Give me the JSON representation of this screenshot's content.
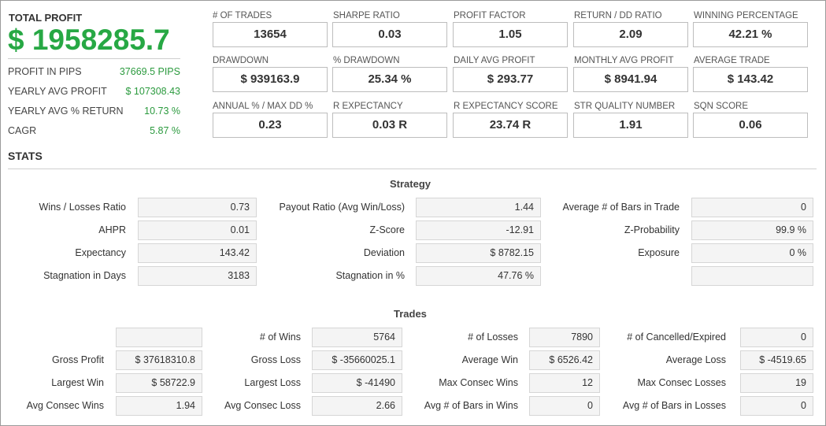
{
  "summary": {
    "total_profit_label": "TOTAL PROFIT",
    "total_profit_value": "$ 1958285.7",
    "rows": [
      {
        "label": "PROFIT IN PIPS",
        "value": "37669.5 PIPS"
      },
      {
        "label": "YEARLY AVG PROFIT",
        "value": "$ 107308.43"
      },
      {
        "label": "YEARLY AVG % RETURN",
        "value": "10.73 %"
      },
      {
        "label": "CAGR",
        "value": "5.87 %"
      }
    ]
  },
  "metrics": [
    {
      "label": "# OF TRADES",
      "value": "13654"
    },
    {
      "label": "SHARPE RATIO",
      "value": "0.03"
    },
    {
      "label": "PROFIT FACTOR",
      "value": "1.05"
    },
    {
      "label": "RETURN / DD RATIO",
      "value": "2.09"
    },
    {
      "label": "WINNING PERCENTAGE",
      "value": "42.21 %"
    },
    {
      "label": "DRAWDOWN",
      "value": "$ 939163.9"
    },
    {
      "label": "% DRAWDOWN",
      "value": "25.34 %"
    },
    {
      "label": "DAILY AVG PROFIT",
      "value": "$ 293.77"
    },
    {
      "label": "MONTHLY AVG PROFIT",
      "value": "$ 8941.94"
    },
    {
      "label": "AVERAGE TRADE",
      "value": "$ 143.42"
    },
    {
      "label": "ANNUAL % / MAX DD %",
      "value": "0.23"
    },
    {
      "label": "R EXPECTANCY",
      "value": "0.03 R"
    },
    {
      "label": "R EXPECTANCY SCORE",
      "value": "23.74 R"
    },
    {
      "label": "STR QUALITY NUMBER",
      "value": "1.91"
    },
    {
      "label": "SQN SCORE",
      "value": "0.06"
    }
  ],
  "stats_title": "STATS",
  "strategy": {
    "title": "Strategy",
    "rows": [
      [
        {
          "label": "Wins / Losses Ratio",
          "value": "0.73"
        },
        {
          "label": "Payout Ratio (Avg Win/Loss)",
          "value": "1.44"
        },
        {
          "label": "Average # of Bars in Trade",
          "value": "0"
        }
      ],
      [
        {
          "label": "AHPR",
          "value": "0.01"
        },
        {
          "label": "Z-Score",
          "value": "-12.91"
        },
        {
          "label": "Z-Probability",
          "value": "99.9 %"
        }
      ],
      [
        {
          "label": "Expectancy",
          "value": "143.42"
        },
        {
          "label": "Deviation",
          "value": "$ 8782.15"
        },
        {
          "label": "Exposure",
          "value": "0 %"
        }
      ],
      [
        {
          "label": "Stagnation in Days",
          "value": "3183"
        },
        {
          "label": "Stagnation in %",
          "value": "47.76 %"
        },
        {
          "label": "",
          "value": ""
        }
      ]
    ]
  },
  "trades": {
    "title": "Trades",
    "rows": [
      [
        {
          "label": "",
          "value": ""
        },
        {
          "label": "# of Wins",
          "value": "5764"
        },
        {
          "label": "# of Losses",
          "value": "7890"
        },
        {
          "label": "# of Cancelled/Expired",
          "value": "0"
        }
      ],
      [
        {
          "label": "Gross Profit",
          "value": "$ 37618310.8"
        },
        {
          "label": "Gross Loss",
          "value": "$ -35660025.1"
        },
        {
          "label": "Average Win",
          "value": "$ 6526.42"
        },
        {
          "label": "Average Loss",
          "value": "$ -4519.65"
        }
      ],
      [
        {
          "label": "Largest Win",
          "value": "$ 58722.9"
        },
        {
          "label": "Largest Loss",
          "value": "$ -41490"
        },
        {
          "label": "Max Consec Wins",
          "value": "12"
        },
        {
          "label": "Max Consec Losses",
          "value": "19"
        }
      ],
      [
        {
          "label": "Avg Consec Wins",
          "value": "1.94"
        },
        {
          "label": "Avg Consec Loss",
          "value": "2.66"
        },
        {
          "label": "Avg # of Bars in Wins",
          "value": "0"
        },
        {
          "label": "Avg # of Bars in Losses",
          "value": "0"
        }
      ]
    ]
  }
}
